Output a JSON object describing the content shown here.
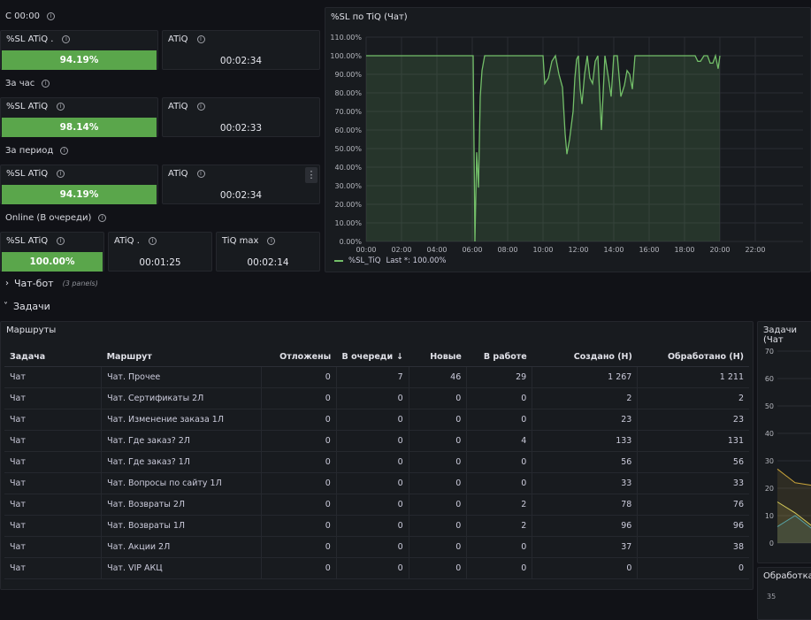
{
  "sections": {
    "since_midnight": "С 00:00",
    "per_hour": "За час",
    "per_period": "За период",
    "online": "Online (В очереди)"
  },
  "stats": {
    "r1_sl_title": "%SL ATiQ .",
    "r1_sl_value": "94.19%",
    "r1_atiq_title": "ATiQ",
    "r1_atiq_value": "00:02:34",
    "r2_sl_title": "%SL ATiQ",
    "r2_sl_value": "98.14%",
    "r2_atiq_title": "ATiQ",
    "r2_atiq_value": "00:02:33",
    "r3_sl_title": "%SL ATiQ",
    "r3_sl_value": "94.19%",
    "r3_atiq_title": "ATiQ",
    "r3_atiq_value": "00:02:34",
    "r3_menu": "⋮",
    "r4_sl_title": "%SL ATiQ",
    "r4_sl_value": "100.00%",
    "r4_atiq_title": "ATiQ .",
    "r4_atiq_value": "00:01:25",
    "r4_tiqmax_title": "TiQ max",
    "r4_tiqmax_value": "00:02:14"
  },
  "chart_panel": {
    "title": "%SL по TiQ (Чат)",
    "legend_label": "%SL_TiQ",
    "legend_last": "Last *: 100.00%"
  },
  "chart_data": {
    "type": "area",
    "title": "%SL по TiQ (Чат)",
    "x_ticks": [
      "00:00",
      "02:00",
      "04:00",
      "06:00",
      "08:00",
      "10:00",
      "12:00",
      "14:00",
      "16:00",
      "18:00",
      "20:00",
      "22:00"
    ],
    "y_ticks": [
      "0.00%",
      "10.00%",
      "20.00%",
      "30.00%",
      "40.00%",
      "50.00%",
      "60.00%",
      "70.00%",
      "80.00%",
      "90.00%",
      "100.00%",
      "110.00%"
    ],
    "ylim": [
      0,
      110
    ],
    "xlim_hours": [
      0,
      23
    ],
    "grid": true,
    "legend_position": "bottom-left",
    "series": [
      {
        "name": "%SL_TiQ",
        "color": "#73bf69",
        "x_hours": [
          0,
          6.05,
          6.15,
          6.25,
          6.35,
          6.45,
          6.55,
          6.7,
          6.9,
          7.1,
          7.5,
          8,
          8.5,
          9,
          9.5,
          9.9,
          10,
          10.1,
          10.3,
          10.5,
          10.7,
          10.9,
          11.1,
          11.25,
          11.35,
          11.5,
          11.7,
          11.8,
          11.9,
          12,
          12.1,
          12.2,
          12.35,
          12.5,
          12.65,
          12.8,
          12.95,
          13.1,
          13.3,
          13.5,
          13.7,
          13.85,
          14,
          14.2,
          14.4,
          14.6,
          14.75,
          14.9,
          15.05,
          15.2,
          15.4,
          16,
          17,
          18,
          18.6,
          18.75,
          18.9,
          19.1,
          19.3,
          19.45,
          19.6,
          19.75,
          19.9,
          20
        ],
        "y_percent": [
          100,
          100,
          0,
          48,
          29,
          78,
          92,
          100,
          100,
          100,
          100,
          100,
          100,
          100,
          100,
          100,
          100,
          85,
          88,
          97,
          100,
          90,
          83,
          58,
          47,
          55,
          70,
          88,
          98,
          100,
          82,
          74,
          90,
          100,
          88,
          85,
          97,
          100,
          60,
          100,
          88,
          78,
          100,
          100,
          78,
          84,
          92,
          90,
          82,
          100,
          100,
          100,
          100,
          100,
          100,
          97,
          97,
          100,
          100,
          96,
          96,
          100,
          93,
          100
        ]
      }
    ]
  },
  "collapsed_row": {
    "chevron": "›",
    "title": "Чат-бот",
    "subtitle": "(3 panels)"
  },
  "expanded_row": {
    "chevron": "˅",
    "title": "Задачи"
  },
  "routes_panel": {
    "title": "Маршруты",
    "columns": [
      "Задача",
      "Маршрут",
      "Отложены",
      "В очереди",
      "Новые",
      "В работе",
      "Создано (Н)",
      "Обработано (Н)"
    ],
    "sort_indicator": "↓",
    "rows": [
      [
        "Чат",
        "Чат. Прочее",
        "0",
        "7",
        "46",
        "29",
        "1 267",
        "1 211"
      ],
      [
        "Чат",
        "Чат. Сертификаты 2Л",
        "0",
        "0",
        "0",
        "0",
        "2",
        "2"
      ],
      [
        "Чат",
        "Чат. Изменение заказа 1Л",
        "0",
        "0",
        "0",
        "0",
        "23",
        "23"
      ],
      [
        "Чат",
        "Чат. Где заказ? 2Л",
        "0",
        "0",
        "0",
        "4",
        "133",
        "131"
      ],
      [
        "Чат",
        "Чат. Где заказ? 1Л",
        "0",
        "0",
        "0",
        "0",
        "56",
        "56"
      ],
      [
        "Чат",
        "Чат. Вопросы по сайту 1Л",
        "0",
        "0",
        "0",
        "0",
        "33",
        "33"
      ],
      [
        "Чат",
        "Чат. Возвраты 2Л",
        "0",
        "0",
        "0",
        "2",
        "78",
        "76"
      ],
      [
        "Чат",
        "Чат. Возвраты 1Л",
        "0",
        "0",
        "0",
        "2",
        "96",
        "96"
      ],
      [
        "Чат",
        "Чат. Акции 2Л",
        "0",
        "0",
        "0",
        "0",
        "37",
        "38"
      ],
      [
        "Чат",
        "Чат. VIP АКЦ",
        "0",
        "0",
        "0",
        "0",
        "0",
        "0"
      ]
    ]
  },
  "side_chart": {
    "title": "Задачи (Чат",
    "y_ticks": [
      "0",
      "10",
      "20",
      "30",
      "40",
      "50",
      "60",
      "70"
    ],
    "series_colors": [
      "#c8a33a",
      "#d6cc5a",
      "#56a3a6"
    ],
    "series_values": [
      [
        27,
        22,
        21
      ],
      [
        15,
        11,
        6
      ],
      [
        6,
        10,
        5
      ]
    ]
  },
  "bottom_panel": {
    "title": "Обработка",
    "y_tick": "35"
  }
}
